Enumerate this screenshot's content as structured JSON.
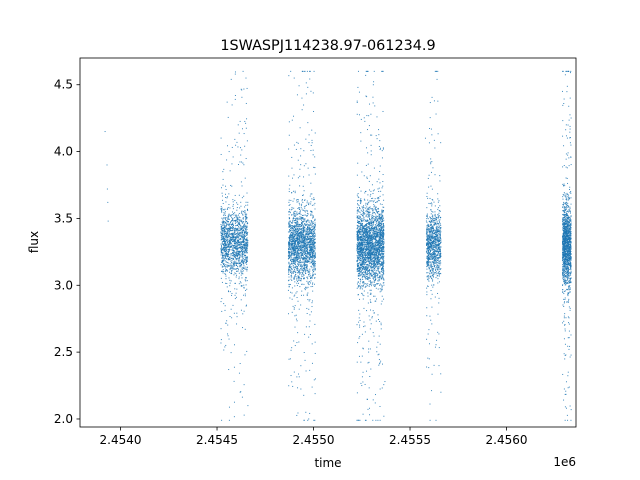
{
  "chart_data": {
    "type": "scatter",
    "title": "1SWASPJ114238.97-061234.9",
    "xlabel": "time",
    "ylabel": "flux",
    "x_offset_label": "1e6",
    "xlim": [
      2453790,
      2456360
    ],
    "ylim": [
      1.94,
      4.7
    ],
    "x_ticks": [
      2.454,
      2.4545,
      2.455,
      2.4555,
      2.456
    ],
    "x_tick_labels": [
      "2.4540",
      "2.4545",
      "2.4550",
      "2.4555",
      "2.4560"
    ],
    "y_ticks": [
      2.0,
      2.5,
      3.0,
      3.5,
      4.0,
      4.5
    ],
    "y_tick_labels": [
      "2.0",
      "2.5",
      "3.0",
      "3.5",
      "4.0",
      "4.5"
    ],
    "grid": false,
    "marker_color": "#1f77b4",
    "series": [
      {
        "values_description_note": "",
        "points": [
          [
            2453920,
            4.15
          ],
          [
            2453930,
            3.9
          ],
          [
            2453932,
            3.72
          ],
          [
            2453934,
            3.62
          ],
          [
            2453936,
            3.48
          ],
          [
            2454530,
            3.85
          ],
          [
            2454545,
            2.55
          ],
          [
            2454560,
            3.3
          ],
          [
            2454575,
            3.45
          ],
          [
            2454590,
            3.15
          ],
          [
            2454610,
            4.2
          ],
          [
            2454620,
            2.2
          ],
          [
            2454630,
            3.4
          ],
          [
            2454650,
            4.55
          ],
          [
            2454660,
            2.1
          ],
          [
            2454880,
            2.45
          ],
          [
            2454900,
            4.55
          ],
          [
            2454920,
            3.2
          ],
          [
            2454940,
            4.4
          ],
          [
            2454960,
            2.05
          ],
          [
            2454975,
            2.0
          ],
          [
            2454990,
            3.45
          ],
          [
            2455000,
            4.3
          ],
          [
            2455010,
            2.3
          ],
          [
            2455230,
            4.48
          ],
          [
            2455250,
            2.25
          ],
          [
            2455270,
            4.57
          ],
          [
            2455290,
            2.08
          ],
          [
            2455310,
            4.5
          ],
          [
            2455320,
            2.12
          ],
          [
            2455340,
            3.1
          ],
          [
            2455360,
            4.3
          ],
          [
            2455370,
            2.28
          ],
          [
            2455580,
            4.1
          ],
          [
            2455600,
            2.45
          ],
          [
            2455620,
            3.35
          ],
          [
            2455640,
            4.54
          ],
          [
            2455660,
            2.2
          ],
          [
            2456290,
            4.45
          ],
          [
            2456300,
            2.6
          ],
          [
            2456310,
            4.2
          ],
          [
            2456320,
            2.35
          ],
          [
            2456330,
            4.4
          ],
          [
            2456335,
            2.07
          ]
        ]
      }
    ],
    "clusters": [
      {
        "x_min": 2454520,
        "x_max": 2454660,
        "y_center": 3.32,
        "y_spread": 0.28,
        "count": 1500
      },
      {
        "x_min": 2454870,
        "x_max": 2455010,
        "y_center": 3.3,
        "y_spread": 0.3,
        "count": 1900
      },
      {
        "x_min": 2455225,
        "x_max": 2455365,
        "y_center": 3.3,
        "y_spread": 0.32,
        "count": 2600
      },
      {
        "x_min": 2455585,
        "x_max": 2455660,
        "y_center": 3.3,
        "y_spread": 0.26,
        "count": 1000
      },
      {
        "x_min": 2456290,
        "x_max": 2456335,
        "y_center": 3.3,
        "y_spread": 0.34,
        "count": 1400
      }
    ]
  }
}
